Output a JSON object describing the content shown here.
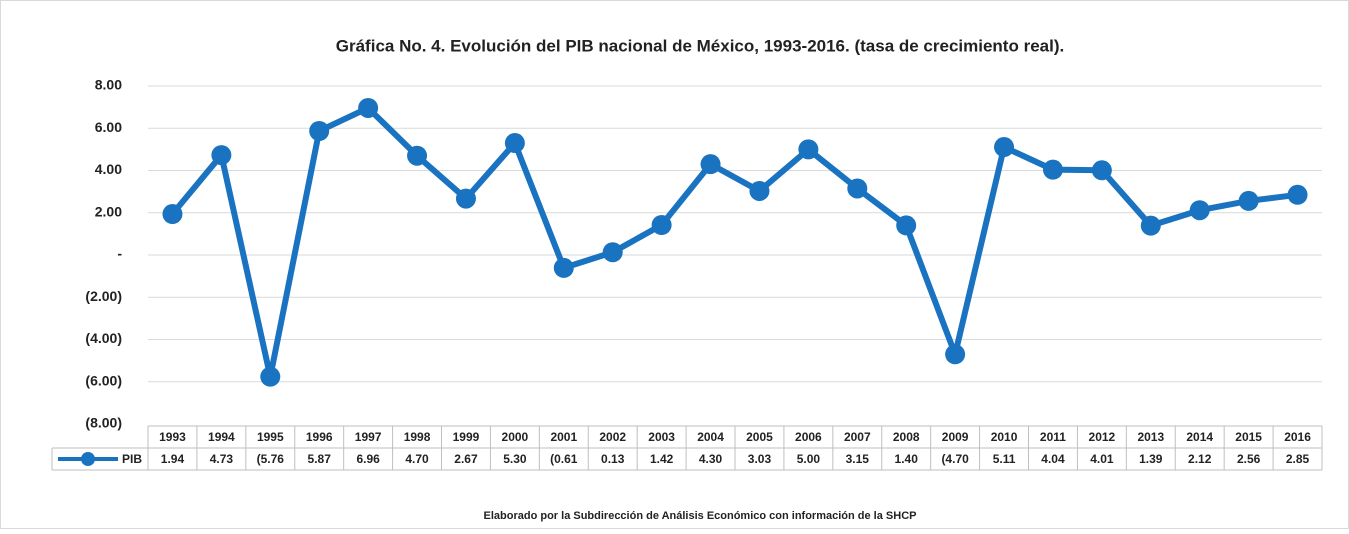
{
  "chart_data": {
    "type": "line",
    "title": "Gráfica No. 4. Evolución del PIB nacional de México, 1993-2016. (tasa de crecimiento real).",
    "footnote": "Elaborado por la Subdirección de Análisis Económico con información de la SHCP",
    "categories": [
      "1993",
      "1994",
      "1995",
      "1996",
      "1997",
      "1998",
      "1999",
      "2000",
      "2001",
      "2002",
      "2003",
      "2004",
      "2005",
      "2006",
      "2007",
      "2008",
      "2009",
      "2010",
      "2011",
      "2012",
      "2013",
      "2014",
      "2015",
      "2016"
    ],
    "series": [
      {
        "name": "PIB",
        "color": "#1a73c0",
        "values": [
          1.94,
          4.73,
          -5.76,
          5.87,
          6.96,
          4.7,
          2.67,
          5.3,
          -0.61,
          0.13,
          1.42,
          4.3,
          3.03,
          5,
          3.15,
          1.4,
          -4.7,
          5.11,
          4.04,
          4.01,
          1.39,
          2.12,
          2.56,
          2.85
        ],
        "value_labels": [
          "1.94",
          "4.73",
          "(5.76",
          "5.87",
          "6.96",
          "4.70",
          "2.67",
          "5.30",
          "(0.61",
          "0.13",
          "1.42",
          "4.30",
          "3.03",
          "5.00",
          "3.15",
          "1.40",
          "(4.70",
          "5.11",
          "4.04",
          "4.01",
          "1.39",
          "2.12",
          "2.56",
          "2.85"
        ]
      }
    ],
    "ylim": [
      -8,
      8
    ],
    "yticks": [
      {
        "value": -8,
        "label": "(8.00)"
      },
      {
        "value": -6,
        "label": "(6.00)"
      },
      {
        "value": -4,
        "label": "(4.00)"
      },
      {
        "value": -2,
        "label": "(2.00)"
      },
      {
        "value": 0,
        "label": "-"
      },
      {
        "value": 2,
        "label": "2.00"
      },
      {
        "value": 4,
        "label": "4.00"
      },
      {
        "value": 6,
        "label": "6.00"
      },
      {
        "value": 8,
        "label": "8.00"
      }
    ],
    "grid": true
  }
}
